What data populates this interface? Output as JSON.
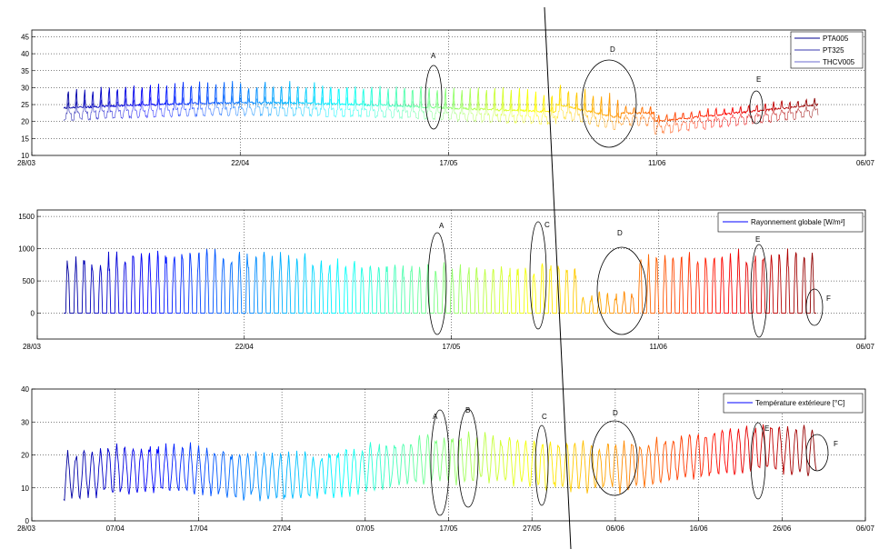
{
  "chart_data": [
    {
      "type": "line",
      "title": "",
      "xlabel": "",
      "ylabel": "",
      "xlim": [
        "2008-03-28",
        "2008-07-06"
      ],
      "ylim": [
        10,
        47
      ],
      "yticks": [
        10,
        15,
        20,
        25,
        30,
        35,
        40,
        45
      ],
      "xtick_labels": [
        "28/03",
        "22/04",
        "17/05",
        "11/06",
        "06/07"
      ],
      "grid": true,
      "legend_position": "top-right",
      "series": [
        {
          "name": "PTA005",
          "color": "#00008f"
        },
        {
          "name": "PT325",
          "color": "#3a3aaf"
        },
        {
          "name": "THCV005",
          "color": "#6a6acf"
        }
      ],
      "annotations": [
        "A",
        "D",
        "E"
      ]
    },
    {
      "type": "line",
      "title": "",
      "xlabel": "",
      "ylabel": "",
      "xlim": [
        "2008-03-28",
        "2008-07-06"
      ],
      "ylim": [
        -400,
        1600
      ],
      "yticks": [
        0,
        500,
        1000,
        1500
      ],
      "xtick_labels": [
        "28/03",
        "22/04",
        "17/05",
        "11/06",
        "06/07"
      ],
      "grid": true,
      "legend_position": "top-right",
      "series": [
        {
          "name": "Rayonnement globale [W/m²]",
          "color": "#0000ff"
        }
      ],
      "annotations": [
        "A",
        "C",
        "D",
        "E",
        "F"
      ]
    },
    {
      "type": "line",
      "title": "",
      "xlabel": "",
      "ylabel": "",
      "xlim": [
        "2008-03-28",
        "2008-07-06"
      ],
      "ylim": [
        0,
        40
      ],
      "yticks": [
        0,
        10,
        20,
        30,
        40
      ],
      "xtick_labels": [
        "28/03",
        "07/04",
        "17/04",
        "27/04",
        "07/05",
        "17/05",
        "27/05",
        "06/06",
        "16/06",
        "26/06",
        "06/07"
      ],
      "grid": true,
      "legend_position": "top-right",
      "series": [
        {
          "name": "Température extérieure [°C]",
          "color": "#0000ff"
        }
      ],
      "annotations": [
        "A",
        "B",
        "C",
        "D",
        "E",
        "F"
      ]
    }
  ]
}
